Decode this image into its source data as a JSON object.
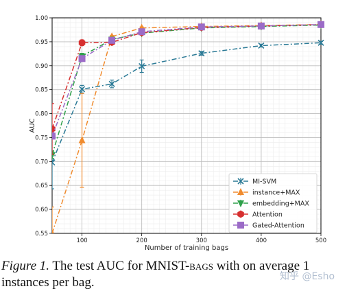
{
  "chart_data": {
    "type": "line",
    "xlabel": "Number of training bags",
    "ylabel": "AUC",
    "xlim": [
      50,
      500
    ],
    "ylim": [
      0.55,
      1.0
    ],
    "xticks": [
      "100",
      "200",
      "300",
      "400",
      "500"
    ],
    "yticks": [
      "0.55",
      "0.60",
      "0.65",
      "0.70",
      "0.75",
      "0.80",
      "0.85",
      "0.90",
      "0.95",
      "1.00"
    ],
    "grid": true,
    "legend_position": "lower-right",
    "series": [
      {
        "name": "MI-SVM",
        "color": "#2b7a96",
        "marker": "x",
        "x": [
          50,
          100,
          150,
          200,
          300,
          400,
          500
        ],
        "y": [
          0.698,
          0.851,
          0.862,
          0.899,
          0.926,
          0.942,
          0.948
        ],
        "err": [
          0.055,
          0.008,
          0.008,
          0.013,
          0.004,
          0.003,
          0.003
        ]
      },
      {
        "name": "instance+MAX",
        "color": "#f08b2e",
        "marker": "triangle",
        "x": [
          50,
          100,
          150,
          200,
          300,
          400,
          500
        ],
        "y": [
          0.55,
          0.744,
          0.961,
          0.979,
          0.982,
          0.984,
          0.986
        ],
        "err": [
          0.055,
          0.098,
          0.002,
          0.002,
          0.001,
          0.001,
          0.001
        ]
      },
      {
        "name": "embedding+MAX",
        "color": "#2ea04a",
        "marker": "triangle-down",
        "x": [
          50,
          100,
          150,
          200,
          300,
          400,
          500
        ],
        "y": [
          0.714,
          0.92,
          0.955,
          0.968,
          0.979,
          0.982,
          0.985
        ],
        "err": [
          0.008,
          0.006,
          0.003,
          0.002,
          0.001,
          0.001,
          0.001
        ]
      },
      {
        "name": "Attention",
        "color": "#d62f2f",
        "marker": "hexagon",
        "x": [
          50,
          100,
          150,
          200,
          300,
          400,
          500
        ],
        "y": [
          0.768,
          0.948,
          0.949,
          0.969,
          0.98,
          0.983,
          0.986
        ],
        "err": [
          0.053,
          0.006,
          0.004,
          0.002,
          0.001,
          0.001,
          0.001
        ]
      },
      {
        "name": "Gated-Attention",
        "color": "#9b6bc7",
        "marker": "square",
        "x": [
          50,
          100,
          150,
          200,
          300,
          400,
          500
        ],
        "y": [
          0.753,
          0.915,
          0.953,
          0.971,
          0.981,
          0.983,
          0.986
        ],
        "err": [
          0.006,
          0.005,
          0.003,
          0.002,
          0.001,
          0.001,
          0.001
        ]
      }
    ]
  },
  "caption": {
    "lead": "Figure 1.",
    "text_1": " The test AUC for MNIST-",
    "smallcaps": "bags",
    "text_2": " with on average 1",
    "line_2": "instances per bag."
  },
  "watermark": "知乎 @Esho"
}
